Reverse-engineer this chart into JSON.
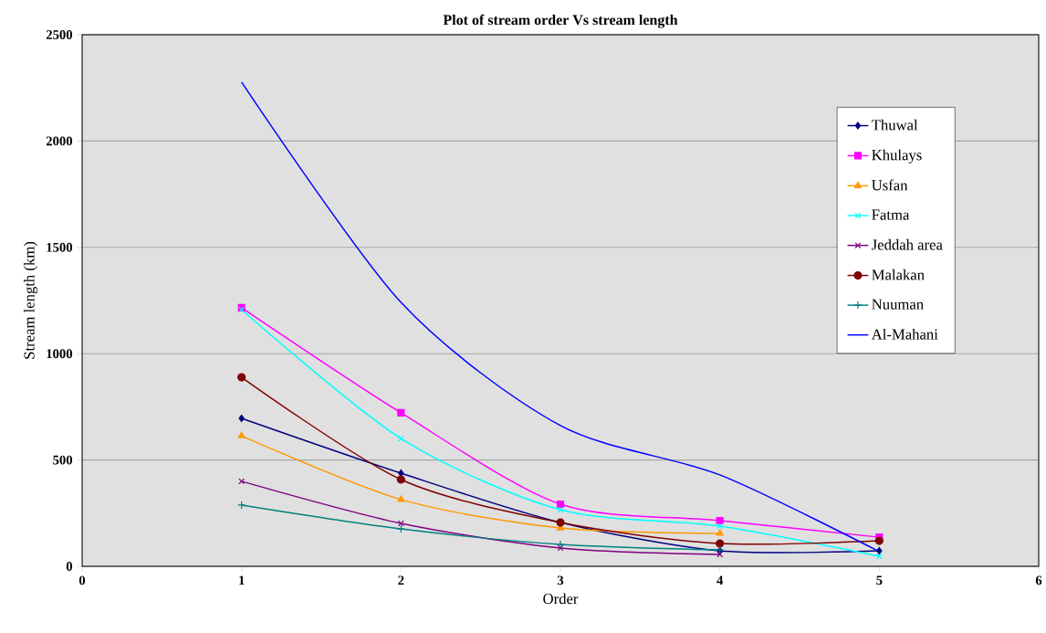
{
  "chart_data": {
    "type": "line",
    "title": "Plot of stream order Vs stream length",
    "xlabel": "Order",
    "ylabel": "Stream length (km)",
    "x": [
      1,
      2,
      3,
      4,
      5
    ],
    "series": [
      {
        "name": "Thuwal",
        "color": "#000080",
        "marker": "diamond",
        "values": [
          696,
          438,
          206,
          73,
          73
        ]
      },
      {
        "name": "Khulays",
        "color": "#ff00ff",
        "marker": "square",
        "values": [
          1216,
          722,
          292,
          215,
          137
        ]
      },
      {
        "name": "Usfan",
        "color": "#ff9900",
        "marker": "triangle",
        "values": [
          614,
          314,
          180,
          155,
          null
        ]
      },
      {
        "name": "Fatma",
        "color": "#00ffff",
        "marker": "cross",
        "values": [
          1207,
          601,
          266,
          189,
          47
        ]
      },
      {
        "name": "Jeddah area",
        "color": "#800080",
        "marker": "cross",
        "values": [
          400,
          202,
          86,
          56,
          null
        ]
      },
      {
        "name": "Malakan",
        "color": "#800000",
        "marker": "circle",
        "values": [
          889,
          408,
          206,
          107,
          120
        ]
      },
      {
        "name": "Nuuman",
        "color": "#008080",
        "marker": "plus",
        "values": [
          288,
          176,
          103,
          77,
          null
        ]
      },
      {
        "name": "Al-Mahani",
        "color": "#0000ff",
        "marker": "none",
        "values": [
          2277,
          1241,
          662,
          430,
          69
        ]
      }
    ],
    "xlim": [
      0,
      6
    ],
    "xticks": [
      0,
      1,
      2,
      3,
      4,
      5,
      6
    ],
    "ylim": [
      0,
      2500
    ],
    "yticks": [
      0,
      500,
      1000,
      1500,
      2000,
      2500
    ],
    "grid": "y",
    "legend": "right"
  }
}
